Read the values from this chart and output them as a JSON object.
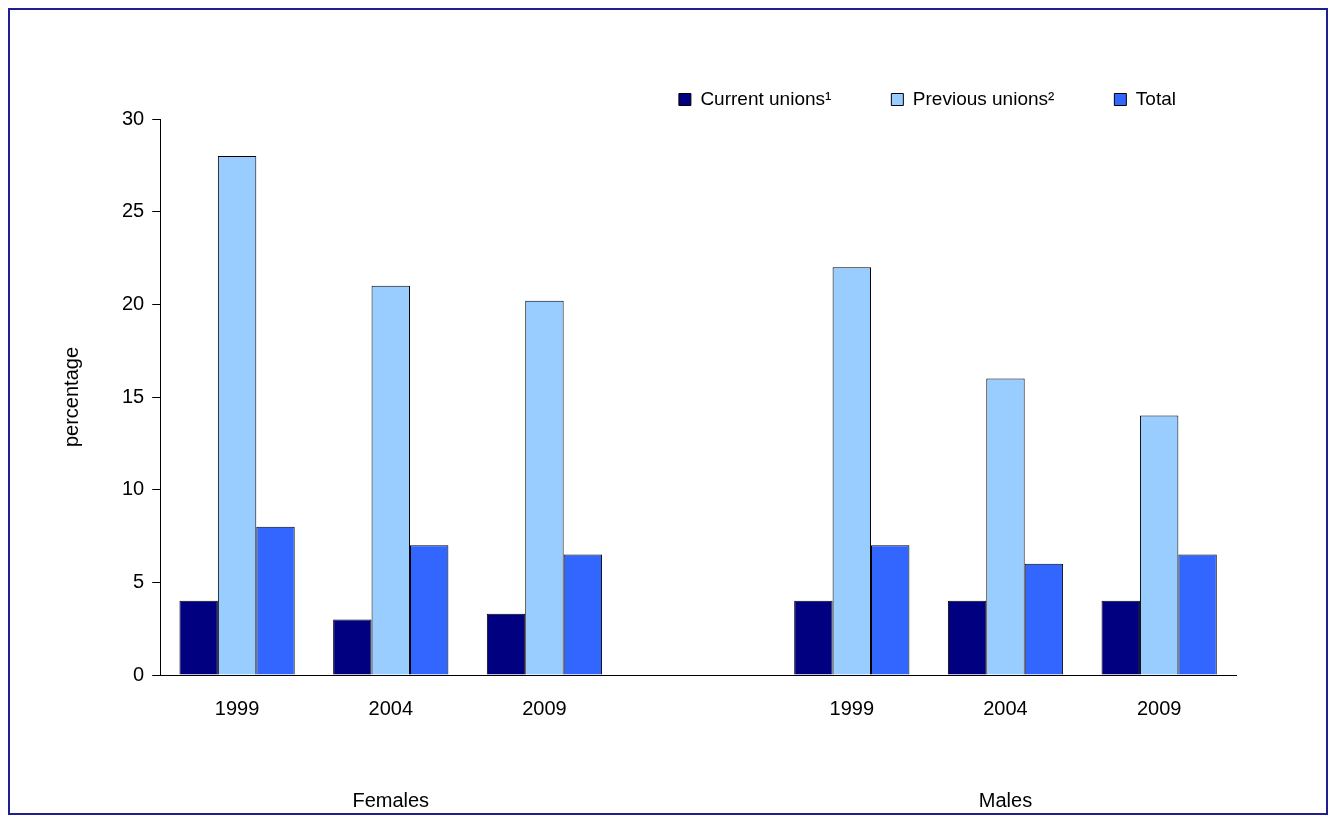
{
  "chart_data": {
    "type": "bar",
    "categories": [
      "1999",
      "2004",
      "2009",
      null,
      "1999",
      "2004",
      "2009"
    ],
    "series": [
      {
        "name": "Current unions¹",
        "color": "#000080",
        "values": [
          4,
          3,
          3.3,
          null,
          4,
          4,
          4
        ]
      },
      {
        "name": "Previous unions²",
        "color": "#99ccff",
        "values": [
          28,
          21,
          20.2,
          null,
          22,
          16,
          14
        ]
      },
      {
        "name": "Total",
        "color": "#3366ff",
        "values": [
          8,
          7,
          6.5,
          null,
          7,
          6,
          6.5
        ]
      }
    ],
    "ylabel": "percentage",
    "annotations": [
      "Females",
      "Males"
    ],
    "ylim": [
      0,
      30
    ],
    "yticks": [
      0,
      5,
      10,
      15,
      20,
      25,
      30
    ],
    "grid": false,
    "legend": "top right"
  }
}
